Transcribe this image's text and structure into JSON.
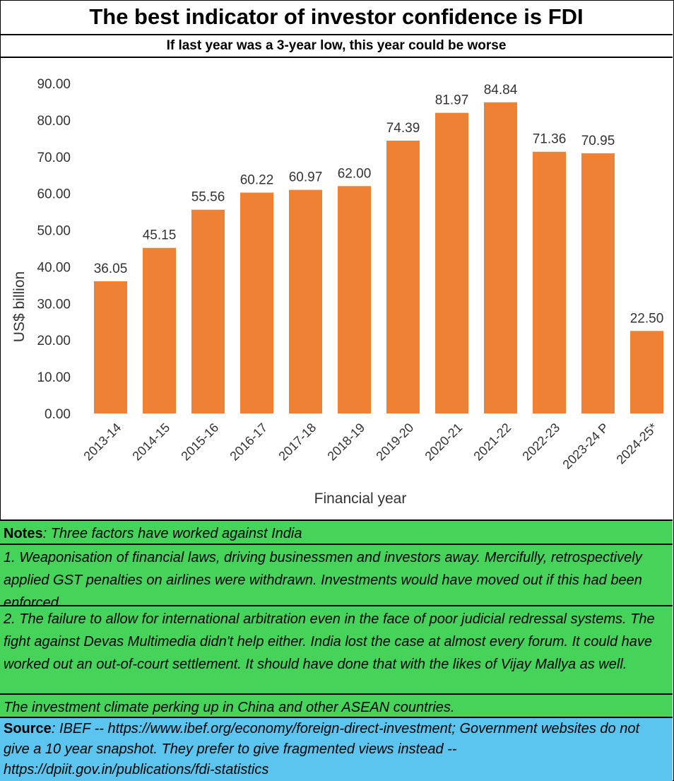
{
  "title": "The best indicator of investor confidence is FDI",
  "subtitle": "If last year was a 3-year low, this year could be worse",
  "colors": {
    "bar": "#ee8133",
    "notes_bg": "#45d35a",
    "source_bg": "#5bc4ef"
  },
  "chart_data": {
    "type": "bar",
    "categories": [
      "2013-14",
      "2014-15",
      "2015-16",
      "2016-17",
      "2017-18",
      "2018-19",
      "2019-20",
      "2020-21",
      "2021-22",
      "2022-23",
      "2023-24 P",
      "2024-25*"
    ],
    "values": [
      36.05,
      45.15,
      55.56,
      60.22,
      60.97,
      62.0,
      74.39,
      81.97,
      84.84,
      71.36,
      70.95,
      22.5
    ],
    "value_labels": [
      "36.05",
      "45.15",
      "55.56",
      "60.22",
      "60.97",
      "62.00",
      "74.39",
      "81.97",
      "84.84",
      "71.36",
      "70.95",
      "22.50"
    ],
    "xlabel": "Financial year",
    "ylabel": "US$ billion",
    "ylim": [
      0,
      90
    ],
    "yticks": [
      "0.00",
      "10.00",
      "20.00",
      "30.00",
      "40.00",
      "50.00",
      "60.00",
      "70.00",
      "80.00",
      "90.00"
    ],
    "grid": false,
    "legend": "none"
  },
  "notes": {
    "label": "Notes",
    "intro": ": Three factors have worked against India",
    "items": [
      "1. Weaponisation of financial laws, driving businessmen and investors away.  Mercifully, retrospectively applied GST penalties on airlines were withdrawn.  Investments would have moved out if this had been enforced.",
      "2. The failure to allow for international arbitration even in the face of poor judicial redressal systems.  The fight against Devas Multimedia didn't help either.  India lost the case at almost every forum.  It could have worked out an out-of-court settlement.  It should have done that with the likes of Vijay Mallya as well.",
      "The investment climate perking up in China and other ASEAN countries."
    ]
  },
  "source": {
    "label": "Source",
    "text": ": IBEF -- https://www.ibef.org/economy/foreign-direct-investment; Government websites do not give a 10 year snapshot.  They prefer to give fragmented views instead -- https://dpiit.gov.in/publications/fdi-statistics"
  }
}
